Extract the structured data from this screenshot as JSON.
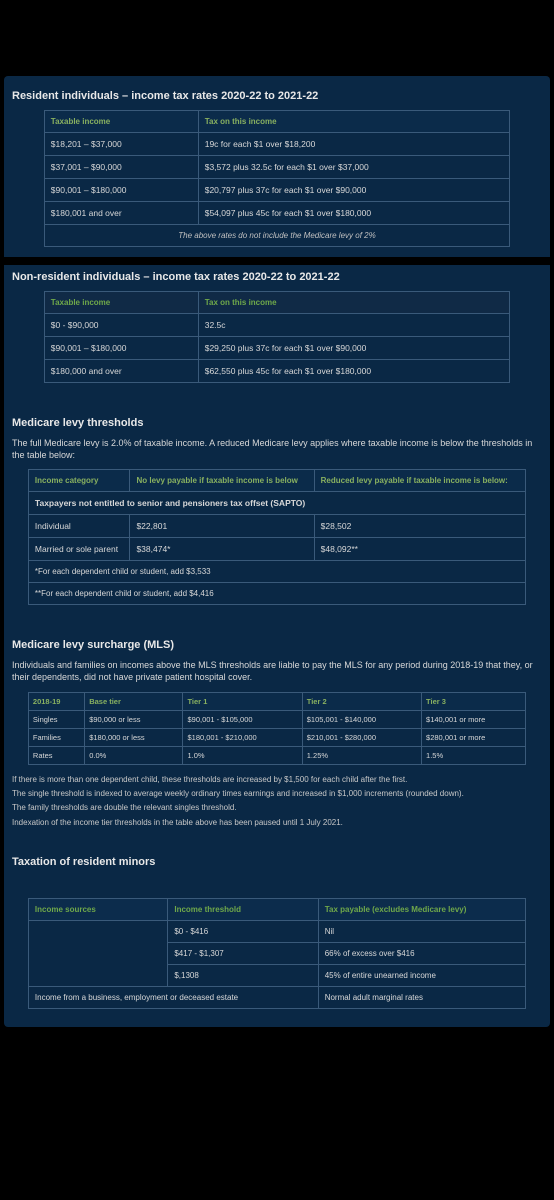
{
  "resident": {
    "title": "Resident individuals – income tax rates 2020-22 to 2021-22",
    "headers": {
      "col1": "Taxable income",
      "col2": "Tax on this income"
    },
    "rows": [
      {
        "income": "$18,201 – $37,000",
        "tax": "19c for each $1 over $18,200"
      },
      {
        "income": "$37,001 – $90,000",
        "tax": "$3,572 plus 32.5c for each $1 over $37,000"
      },
      {
        "income": "$90,001 – $180,000",
        "tax": "$20,797 plus 37c for each $1 over $90,000"
      },
      {
        "income": "$180,001 and over",
        "tax": "$54,097 plus 45c for each $1 over $180,000"
      }
    ],
    "footnote": "The above rates do not include the Medicare levy of 2%"
  },
  "nonresident": {
    "title": "Non-resident individuals – income tax rates 2020-22 to 2021-22",
    "headers": {
      "col1": "Taxable income",
      "col2": "Tax on this income"
    },
    "rows": [
      {
        "income": "$0 - $90,000",
        "tax": "32.5c"
      },
      {
        "income": "$90,001 – $180,000",
        "tax": "$29,250 plus 37c for each $1 over $90,000"
      },
      {
        "income": "$180,000 and over",
        "tax": "$62,550 plus 45c for each $1 over $180,000"
      }
    ]
  },
  "medicare_levy": {
    "title": "Medicare levy thresholds",
    "intro": "The full Medicare levy is 2.0% of taxable income. A reduced Medicare levy applies where taxable income is below the thresholds in the table below:",
    "headers": {
      "c1": "Income category",
      "c2": "No levy payable if taxable income is below",
      "c3": "Reduced levy payable if taxable income is below:"
    },
    "sapto_row": "Taxpayers not entitled to senior and pensioners tax offset (SAPTO)",
    "rows": [
      {
        "cat": "Individual",
        "no": "$22,801",
        "red": "$28,502"
      },
      {
        "cat": "Married or sole parent",
        "no": "$38,474*",
        "red": "$48,092**"
      }
    ],
    "notes": [
      "*For each dependent child or student, add $3,533",
      "**For each dependent child or student, add $4,416"
    ]
  },
  "mls": {
    "title": "Medicare levy surcharge (MLS)",
    "intro": "Individuals and families on incomes above the MLS thresholds are liable to pay the MLS for any period during 2018-19 that they, or their dependents, did not have private patient hospital cover.",
    "headers": [
      "2018-19",
      "Base tier",
      "Tier 1",
      "Tier 2",
      "Tier 3"
    ],
    "rows": [
      {
        "label": "Singles",
        "c1": "$90,000 or less",
        "c2": "$90,001 - $105,000",
        "c3": "$105,001 - $140,000",
        "c4": "$140,001 or more"
      },
      {
        "label": "Families",
        "c1": "$180,000 or less",
        "c2": "$180,001 - $210,000",
        "c3": "$210,001 - $280,000",
        "c4": "$280,001 or more"
      },
      {
        "label": "Rates",
        "c1": "0.0%",
        "c2": "1.0%",
        "c3": "1.25%",
        "c4": "1.5%"
      }
    ],
    "notes": [
      "If there is more than one dependent child, these thresholds are increased by $1,500 for each child after the first.",
      "The single threshold is indexed to average weekly ordinary times earnings and increased in $1,000 increments (rounded down).",
      "The family thresholds are double the relevant singles threshold.",
      "Indexation of the income tier thresholds in the table above has been paused until 1 July 2021."
    ]
  },
  "minors": {
    "title": "Taxation of resident minors",
    "headers": {
      "c1": "Income sources",
      "c2": "Income threshold",
      "c3": "Tax payable (excludes Medicare levy)"
    },
    "rows": [
      {
        "src": "",
        "th": "$0 - $416",
        "tax": "Nil"
      },
      {
        "src": "",
        "th": "$417 - $1,307",
        "tax": "66% of excess over $416"
      },
      {
        "src": "",
        "th": "$,1308",
        "tax": "45% of entire unearned income"
      },
      {
        "src_span": "Income from a business, employment or deceased estate",
        "tax": "Normal adult marginal rates"
      }
    ]
  }
}
